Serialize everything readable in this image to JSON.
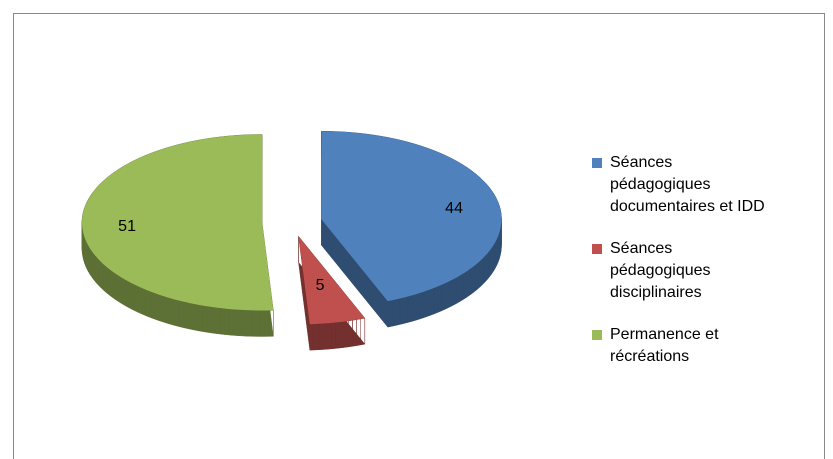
{
  "chart_data": {
    "type": "pie",
    "categories": [
      "Séances pédagogiques documentaires et IDD",
      "Séances pédagogiques disciplinaires",
      "Permanence et récréations"
    ],
    "values": [
      44,
      5,
      51
    ],
    "colors": [
      "#4f81bd",
      "#c0504d",
      "#9bbb59"
    ],
    "legend": "right"
  }
}
